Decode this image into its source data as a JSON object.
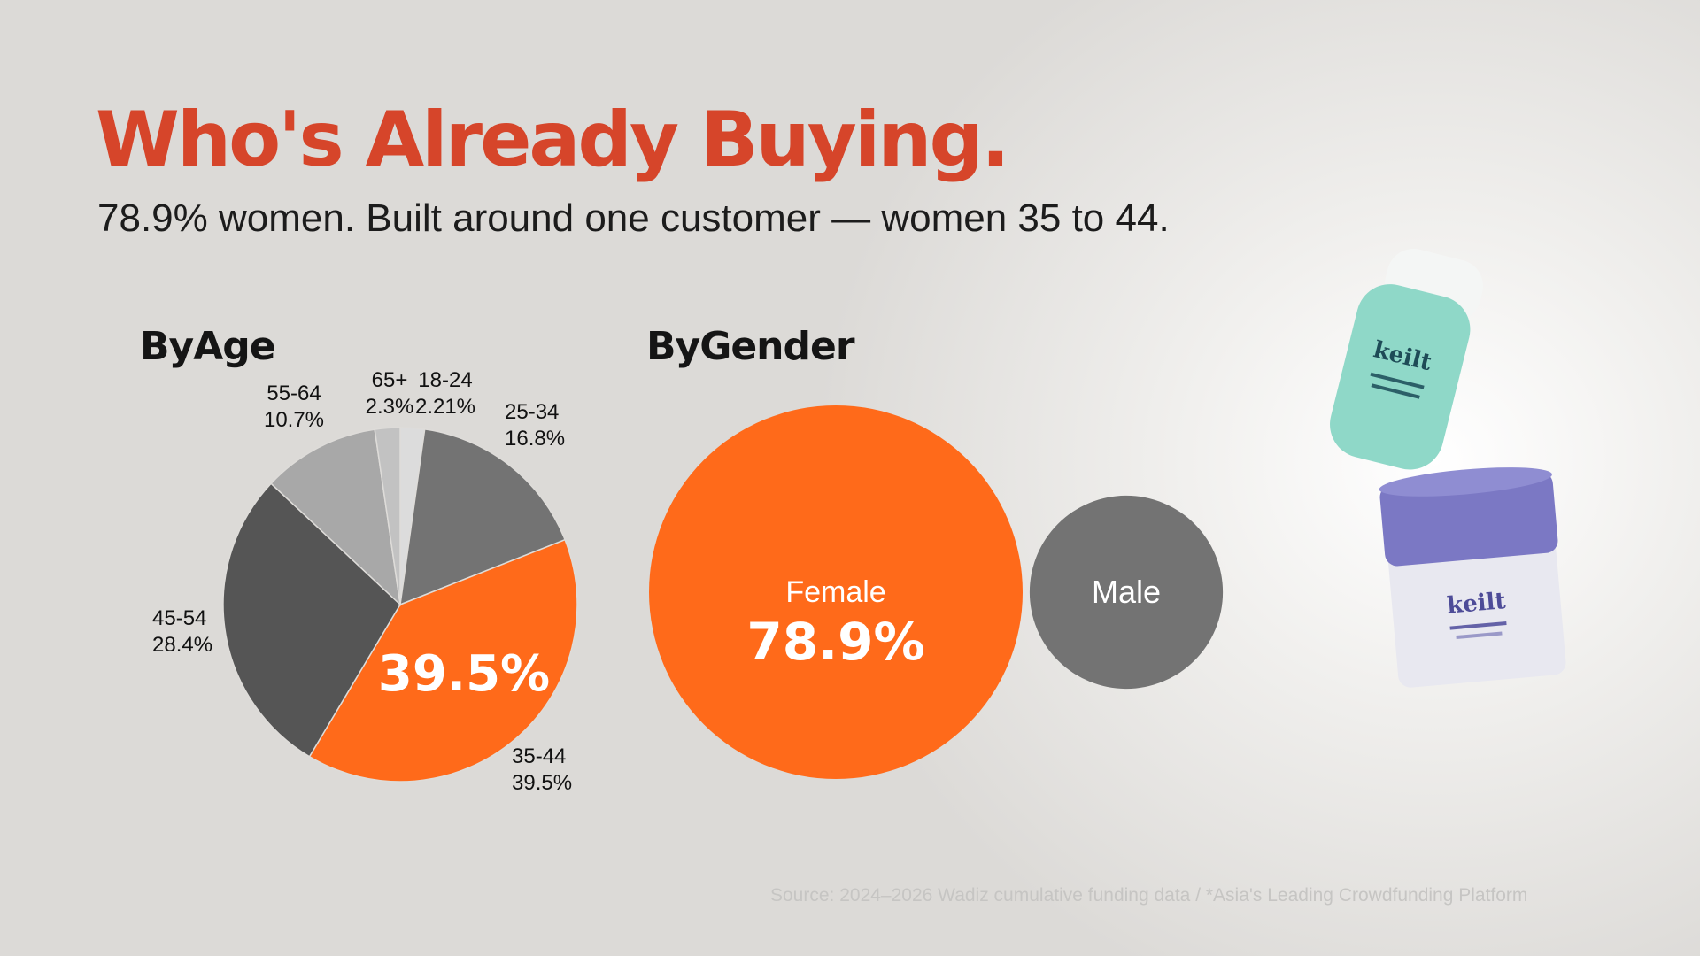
{
  "slide": {
    "title": "Who's Already Buying.",
    "subtitle": "78.9% women. Built around one customer — women 35 to 44.",
    "source": "Source: 2024–2026 Wadiz cumulative funding data / *Asia's Leading Crowdfunding Platform"
  },
  "colors": {
    "accent": "#ff6a1a",
    "title": "#d6452a",
    "dark_gray": "#555555",
    "mid_gray": "#737373",
    "light_gray": "#a8a8a8",
    "lighter_gray": "#c2c2c2",
    "lightest_gray": "#dcdcdc",
    "teal_product": "#8fd8c8",
    "purple_product": "#7b78c4"
  },
  "chart_data": [
    {
      "type": "pie",
      "title": "ByAge",
      "categories": [
        "18-24",
        "25-34",
        "35-44",
        "45-54",
        "55-64",
        "65+"
      ],
      "values": [
        2.21,
        16.8,
        39.5,
        28.4,
        10.7,
        2.3
      ],
      "value_labels": [
        "2.21%",
        "16.8%",
        "39.5%",
        "28.4%",
        "10.7%",
        "2.3%"
      ],
      "highlight": {
        "category": "35-44",
        "label": "39.5%"
      },
      "legend": "none"
    },
    {
      "type": "bubble",
      "title": "ByGender",
      "categories": [
        "Female",
        "Male"
      ],
      "values": [
        78.9,
        21.1
      ],
      "value_labels": [
        "78.9%",
        ""
      ],
      "legend": "none"
    }
  ],
  "products": [
    {
      "name": "teal-serum-bottle",
      "brand": "keilt"
    },
    {
      "name": "purple-cream-jar",
      "brand": "keilt"
    }
  ]
}
